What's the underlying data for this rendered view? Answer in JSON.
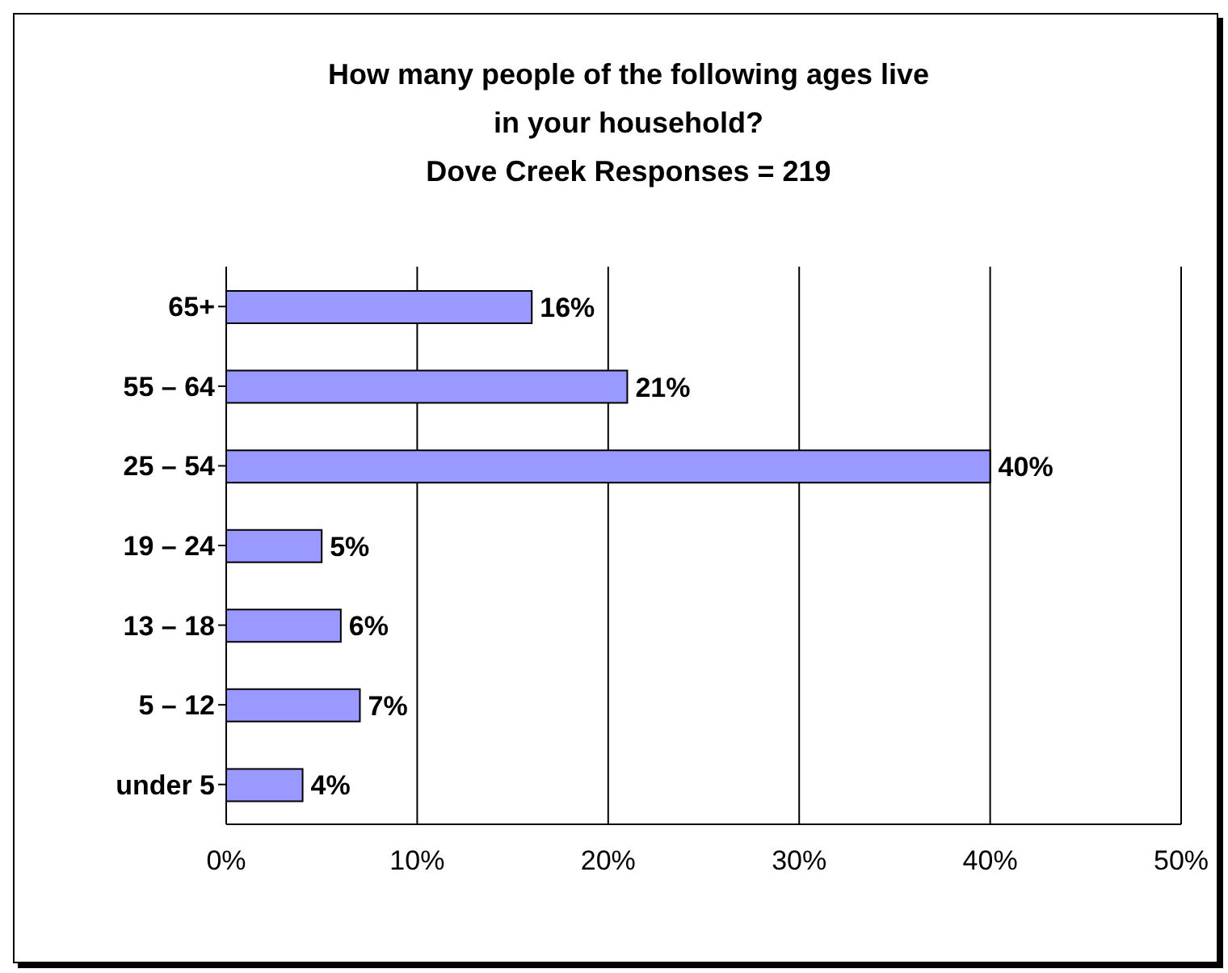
{
  "chart_data": {
    "type": "bar",
    "orientation": "horizontal",
    "title": "How many people of the following ages live in your household?",
    "subtitle": "Dove Creek Responses = 219",
    "categories": [
      "65+",
      "55 – 64",
      "25 – 54",
      "19 – 24",
      "13 – 18",
      "5 – 12",
      "under 5"
    ],
    "values": [
      16,
      21,
      40,
      5,
      6,
      7,
      4
    ],
    "value_labels": [
      "16%",
      "21%",
      "40%",
      "5%",
      "6%",
      "7%",
      "4%"
    ],
    "color": "#9999ff",
    "xlim": [
      0,
      50
    ],
    "xticks": [
      {
        "value": 0,
        "label": "0%"
      },
      {
        "value": 10,
        "label": "10%"
      },
      {
        "value": 20,
        "label": "20%"
      },
      {
        "value": 30,
        "label": "30%"
      },
      {
        "value": 40,
        "label": "40%"
      },
      {
        "value": 50,
        "label": "50%"
      }
    ],
    "grid": "x"
  }
}
